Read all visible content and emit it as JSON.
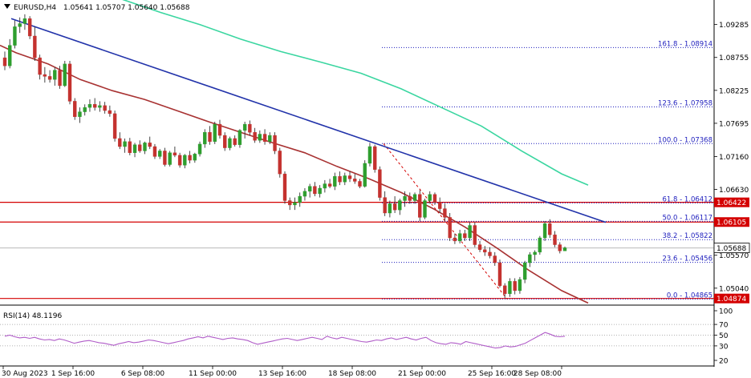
{
  "header": {
    "symbol_label": "EURUSD,H4",
    "ohlc_label": "1.05641 1.05707 1.05640 1.05688"
  },
  "rsi_label": "RSI(14) 48.1196",
  "colors": {
    "bull": "#2e9e2e",
    "bear": "#c4322f",
    "ma_slow": "#a83232",
    "ma_long": "#3ad6a0",
    "trendline": "#2233aa",
    "fib": "#1d1dbd",
    "level": "#d40000",
    "rsi": "#b05cc8"
  },
  "chart_data": {
    "type": "candlestick",
    "y_range": [
      1.0478,
      1.0968
    ],
    "rsi_range": [
      0,
      100
    ],
    "price_ticks": [
      "1.09285",
      "1.08755",
      "1.08225",
      "1.07695",
      "1.07160",
      "1.06630",
      "1.05570",
      "1.05040"
    ],
    "rsi_ticks": [
      "100",
      "70",
      "50",
      "30",
      "20"
    ],
    "time_labels": [
      "30 Aug 2023",
      "1 Sep 16:00",
      "6 Sep 08:00",
      "11 Sep 00:00",
      "13 Sep 16:00",
      "18 Sep 08:00",
      "21 Sep 00:00",
      "25 Sep 16:00",
      "28 Sep 08:00"
    ],
    "candles": [
      [
        1.0875,
        1.0885,
        1.0855,
        1.0862
      ],
      [
        1.0862,
        1.0905,
        1.0858,
        1.0895
      ],
      [
        1.0895,
        1.0935,
        1.089,
        1.0925
      ],
      [
        1.0925,
        1.094,
        1.0915,
        1.093
      ],
      [
        1.093,
        1.0945,
        1.092,
        1.0938
      ],
      [
        1.0938,
        1.0942,
        1.0905,
        1.091
      ],
      [
        1.091,
        1.0925,
        1.087,
        1.0875
      ],
      [
        1.0875,
        1.088,
        1.084,
        1.0848
      ],
      [
        1.0848,
        1.086,
        1.0835,
        1.0845
      ],
      [
        1.0845,
        1.0855,
        1.0835,
        1.084
      ],
      [
        1.084,
        1.086,
        1.083,
        1.0855
      ],
      [
        1.0855,
        1.0862,
        1.0825,
        1.083
      ],
      [
        1.083,
        1.087,
        1.0828,
        1.0865
      ],
      [
        1.0865,
        1.087,
        1.08,
        1.0805
      ],
      [
        1.0805,
        1.081,
        1.0775,
        1.078
      ],
      [
        1.078,
        1.0795,
        1.077,
        1.0788
      ],
      [
        1.0788,
        1.08,
        1.0782,
        1.0795
      ],
      [
        1.0795,
        1.0808,
        1.0788,
        1.08
      ],
      [
        1.08,
        1.081,
        1.079,
        1.0795
      ],
      [
        1.0795,
        1.0805,
        1.0788,
        1.0798
      ],
      [
        1.0798,
        1.0804,
        1.0785,
        1.079
      ],
      [
        1.079,
        1.0798,
        1.078,
        1.0785
      ],
      [
        1.0785,
        1.079,
        1.074,
        1.0745
      ],
      [
        1.0745,
        1.0755,
        1.0728,
        1.0732
      ],
      [
        1.0732,
        1.0745,
        1.0722,
        1.074
      ],
      [
        1.074,
        1.0746,
        1.0718,
        1.0722
      ],
      [
        1.0722,
        1.0738,
        1.0715,
        1.0735
      ],
      [
        1.0735,
        1.0742,
        1.0722,
        1.0725
      ],
      [
        1.0725,
        1.074,
        1.072,
        1.0738
      ],
      [
        1.0738,
        1.0748,
        1.0728,
        1.0732
      ],
      [
        1.0732,
        1.0736,
        1.0712,
        1.0716
      ],
      [
        1.0716,
        1.0728,
        1.0712,
        1.0725
      ],
      [
        1.0725,
        1.073,
        1.07,
        1.0703
      ],
      [
        1.0703,
        1.0725,
        1.07,
        1.0722
      ],
      [
        1.0722,
        1.0732,
        1.0715,
        1.0718
      ],
      [
        1.0718,
        1.0722,
        1.0698,
        1.0702
      ],
      [
        1.0702,
        1.072,
        1.0697,
        1.0718
      ],
      [
        1.0718,
        1.0725,
        1.0705,
        1.071
      ],
      [
        1.071,
        1.0722,
        1.0706,
        1.072
      ],
      [
        1.072,
        1.074,
        1.0716,
        1.0736
      ],
      [
        1.0736,
        1.076,
        1.073,
        1.0755
      ],
      [
        1.0755,
        1.0765,
        1.0735,
        1.074
      ],
      [
        1.074,
        1.0772,
        1.0736,
        1.0768
      ],
      [
        1.0768,
        1.0775,
        1.0745,
        1.075
      ],
      [
        1.075,
        1.0755,
        1.0725,
        1.073
      ],
      [
        1.073,
        1.0748,
        1.0726,
        1.0745
      ],
      [
        1.0745,
        1.075,
        1.0732,
        1.0735
      ],
      [
        1.0735,
        1.076,
        1.073,
        1.0758
      ],
      [
        1.0758,
        1.0772,
        1.0745,
        1.0768
      ],
      [
        1.0768,
        1.0774,
        1.075,
        1.0755
      ],
      [
        1.0755,
        1.0762,
        1.0738,
        1.0742
      ],
      [
        1.0742,
        1.0758,
        1.0738,
        1.0752
      ],
      [
        1.0752,
        1.076,
        1.0735,
        1.074
      ],
      [
        1.074,
        1.0755,
        1.0736,
        1.075
      ],
      [
        1.075,
        1.0755,
        1.072,
        1.0725
      ],
      [
        1.0725,
        1.073,
        1.0682,
        1.0688
      ],
      [
        1.0688,
        1.0692,
        1.064,
        1.0645
      ],
      [
        1.0645,
        1.065,
        1.063,
        1.0638
      ],
      [
        1.0638,
        1.065,
        1.063,
        1.0642
      ],
      [
        1.0642,
        1.0658,
        1.0635,
        1.0652
      ],
      [
        1.0652,
        1.0665,
        1.0645,
        1.066
      ],
      [
        1.066,
        1.0672,
        1.065,
        1.0668
      ],
      [
        1.0668,
        1.0675,
        1.0652,
        1.0656
      ],
      [
        1.0656,
        1.067,
        1.065,
        1.0665
      ],
      [
        1.0665,
        1.0678,
        1.0658,
        1.0672
      ],
      [
        1.0672,
        1.068,
        1.0665,
        1.0668
      ],
      [
        1.0668,
        1.069,
        1.0662,
        1.0684
      ],
      [
        1.0684,
        1.0692,
        1.067,
        1.0675
      ],
      [
        1.0675,
        1.069,
        1.067,
        1.0685
      ],
      [
        1.0685,
        1.0692,
        1.0675,
        1.068
      ],
      [
        1.068,
        1.0688,
        1.0672,
        1.0676
      ],
      [
        1.0676,
        1.068,
        1.0665,
        1.0668
      ],
      [
        1.0668,
        1.071,
        1.0666,
        1.0705
      ],
      [
        1.0705,
        1.0738,
        1.07,
        1.0732
      ],
      [
        1.0732,
        1.0735,
        1.069,
        1.0695
      ],
      [
        1.0695,
        1.07,
        1.0645,
        1.065
      ],
      [
        1.065,
        1.066,
        1.062,
        1.0625
      ],
      [
        1.0625,
        1.0645,
        1.0618,
        1.064
      ],
      [
        1.064,
        1.0652,
        1.0625,
        1.063
      ],
      [
        1.063,
        1.0648,
        1.0622,
        1.0645
      ],
      [
        1.0645,
        1.066,
        1.0635,
        1.0652
      ],
      [
        1.0652,
        1.0658,
        1.064,
        1.0645
      ],
      [
        1.0645,
        1.0658,
        1.064,
        1.0655
      ],
      [
        1.0655,
        1.0662,
        1.0612,
        1.0618
      ],
      [
        1.0618,
        1.0648,
        1.0615,
        1.0645
      ],
      [
        1.0645,
        1.066,
        1.064,
        1.0655
      ],
      [
        1.0655,
        1.0658,
        1.0638,
        1.0642
      ],
      [
        1.0642,
        1.065,
        1.0625,
        1.0632
      ],
      [
        1.0632,
        1.064,
        1.0612,
        1.0618
      ],
      [
        1.0618,
        1.0625,
        1.058,
        1.0585
      ],
      [
        1.0585,
        1.0592,
        1.0575,
        1.058
      ],
      [
        1.058,
        1.0598,
        1.0576,
        1.0592
      ],
      [
        1.0592,
        1.0598,
        1.058,
        1.0585
      ],
      [
        1.0585,
        1.061,
        1.058,
        1.0605
      ],
      [
        1.0605,
        1.061,
        1.057,
        1.0574
      ],
      [
        1.0574,
        1.058,
        1.0562,
        1.0566
      ],
      [
        1.0566,
        1.0572,
        1.0556,
        1.0562
      ],
      [
        1.0562,
        1.057,
        1.0552,
        1.0556
      ],
      [
        1.0556,
        1.0562,
        1.054,
        1.0545
      ],
      [
        1.0545,
        1.055,
        1.0505,
        1.0508
      ],
      [
        1.0508,
        1.0512,
        1.0488,
        1.0495
      ],
      [
        1.0495,
        1.052,
        1.049,
        1.0515
      ],
      [
        1.0515,
        1.052,
        1.0494,
        1.05
      ],
      [
        1.05,
        1.0522,
        1.0495,
        1.0518
      ],
      [
        1.0518,
        1.0548,
        1.0512,
        1.0545
      ],
      [
        1.0545,
        1.0562,
        1.0538,
        1.0558
      ],
      [
        1.0558,
        1.0565,
        1.0548,
        1.0562
      ],
      [
        1.0562,
        1.0588,
        1.0558,
        1.0585
      ],
      [
        1.0585,
        1.0612,
        1.058,
        1.0608
      ],
      [
        1.0608,
        1.0615,
        1.0585,
        1.059
      ],
      [
        1.059,
        1.0596,
        1.057,
        1.0574
      ],
      [
        1.0574,
        1.0578,
        1.056,
        1.0564
      ],
      [
        1.0564,
        1.0571,
        1.0564,
        1.0569
      ]
    ],
    "ma_slow": [
      [
        0,
        1.0895
      ],
      [
        20,
        1.0883
      ],
      [
        60,
        1.0865
      ],
      [
        100,
        1.084
      ],
      [
        140,
        1.0822
      ],
      [
        180,
        1.0808
      ],
      [
        220,
        1.079
      ],
      [
        260,
        1.0772
      ],
      [
        300,
        1.0755
      ],
      [
        340,
        1.0738
      ],
      [
        380,
        1.0722
      ],
      [
        420,
        1.07
      ],
      [
        460,
        1.068
      ],
      [
        500,
        1.0658
      ],
      [
        540,
        1.0632
      ],
      [
        580,
        1.0602
      ],
      [
        620,
        1.0568
      ],
      [
        660,
        1.0532
      ],
      [
        700,
        1.05
      ],
      [
        733,
        1.048
      ]
    ],
    "ma_long": [
      [
        150,
        1.097
      ],
      [
        200,
        1.0948
      ],
      [
        250,
        1.0928
      ],
      [
        300,
        1.0905
      ],
      [
        350,
        1.0885
      ],
      [
        400,
        1.0868
      ],
      [
        450,
        1.085
      ],
      [
        500,
        1.0825
      ],
      [
        550,
        1.0795
      ],
      [
        600,
        1.0765
      ],
      [
        650,
        1.0725
      ],
      [
        700,
        1.0688
      ],
      [
        733,
        1.067
      ]
    ],
    "fib_levels": [
      {
        "label": "161.8 - 1.08914",
        "value": 1.08914
      },
      {
        "label": "123.6 - 1.07958",
        "value": 1.07958
      },
      {
        "label": "100.0 - 1.07368",
        "value": 1.07368
      },
      {
        "label": "61.8 - 1.06412",
        "value": 1.06412
      },
      {
        "label": "50.0 - 1.06117",
        "value": 1.06117
      },
      {
        "label": "38.2 - 1.05822",
        "value": 1.05822
      },
      {
        "label": "23.6 - 1.05456",
        "value": 1.05456
      },
      {
        "label": "0.0 - 1.04865",
        "value": 1.04865
      }
    ],
    "horizontal_levels": [
      {
        "label": "1.06422",
        "value": 1.06422
      },
      {
        "label": "1.06105",
        "value": 1.06105
      },
      {
        "label": "1.04874",
        "value": 1.04874
      }
    ],
    "current_price": {
      "label": "1.05688",
      "value": 1.05688
    },
    "trendline": {
      "start_price": 1.0938,
      "end_price": 1.061
    },
    "fib_swing": {
      "high": 1.07368,
      "low": 1.04865
    },
    "rsi_values": [
      48,
      50,
      47,
      45,
      46,
      44,
      46,
      43,
      41,
      42,
      40,
      43,
      41,
      38,
      35,
      37,
      39,
      40,
      38,
      36,
      35,
      33,
      31,
      34,
      36,
      38,
      36,
      37,
      39,
      41,
      40,
      38,
      36,
      34,
      36,
      38,
      40,
      43,
      45,
      47,
      45,
      48,
      46,
      44,
      42,
      44,
      45,
      43,
      42,
      40,
      36,
      33,
      35,
      37,
      39,
      41,
      43,
      44,
      42,
      40,
      42,
      44,
      46,
      44,
      42,
      48,
      45,
      43,
      46,
      44,
      42,
      40,
      38,
      37,
      39,
      41,
      40,
      43,
      45,
      42,
      44,
      46,
      43,
      41,
      44,
      46,
      40,
      36,
      34,
      33,
      36,
      35,
      33,
      38,
      36,
      34,
      32,
      30,
      28,
      26,
      27,
      30,
      28,
      29,
      32,
      35,
      40,
      45,
      50,
      55,
      52,
      48,
      47,
      48
    ]
  }
}
